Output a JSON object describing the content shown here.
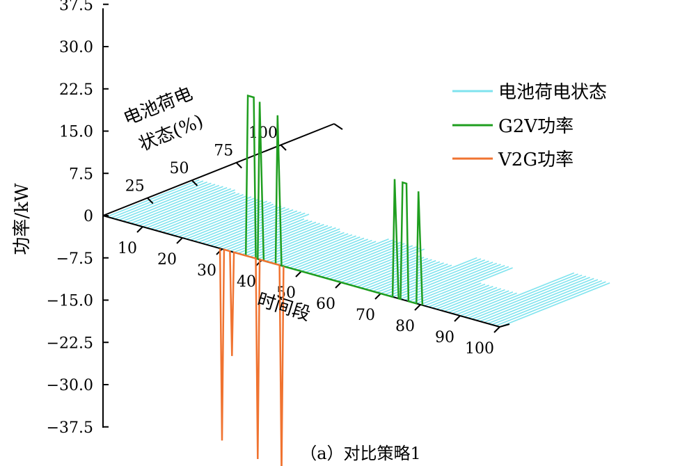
{
  "chart_data": {
    "type": "3d-line",
    "caption": "（a）对比策略1",
    "y_axis": {
      "label": "功率/kW",
      "range": [
        -37.5,
        37.5
      ],
      "ticks": [
        "37.5",
        "30.0",
        "22.5",
        "15.0",
        "7.5",
        "0",
        "−7.5",
        "−15.0",
        "−22.5",
        "−30.0",
        "−37.5"
      ]
    },
    "x_axis": {
      "label": "时间段",
      "range": [
        0,
        100
      ],
      "ticks": [
        "10",
        "20",
        "30",
        "40",
        "50",
        "60",
        "70",
        "80",
        "90",
        "100"
      ]
    },
    "z_axis": {
      "label_line1": "电池荷电",
      "label_line2": "状态(%)",
      "range": [
        0,
        100
      ],
      "ticks": [
        "25",
        "50",
        "75",
        "100"
      ]
    },
    "legend": [
      {
        "name": "电池荷电状态",
        "color": "#7fe3ee"
      },
      {
        "name": "G2V功率",
        "color": "#1f9e1f"
      },
      {
        "name": "V2G功率",
        "color": "#f07330"
      }
    ],
    "soc_series": [
      52,
      52,
      52,
      52,
      52,
      52,
      52,
      52,
      52,
      52,
      50,
      50,
      50,
      50,
      50,
      50,
      50,
      50,
      50,
      50,
      49,
      49,
      49,
      49,
      49,
      49,
      49,
      49,
      49,
      49,
      44,
      44,
      44,
      44,
      44,
      44,
      44,
      44,
      44,
      44,
      42,
      42,
      42,
      42,
      42,
      42,
      42,
      42,
      42,
      42,
      47,
      47,
      47,
      47,
      47,
      47,
      47,
      47,
      47,
      47,
      40,
      40,
      40,
      40,
      40,
      40,
      40,
      40,
      40,
      40,
      52,
      52,
      52,
      52,
      52,
      52,
      52,
      52,
      52,
      52,
      32,
      32,
      32,
      32,
      32,
      32,
      32,
      32,
      32,
      32,
      62,
      62,
      62,
      62,
      62,
      62,
      62,
      62,
      62,
      62
    ],
    "g2v_series": [
      {
        "x": 36.0,
        "y": 0
      },
      {
        "x": 36.5,
        "y": 28.5
      },
      {
        "x": 38.0,
        "y": 28.5
      },
      {
        "x": 38.5,
        "y": 0
      },
      {
        "x": 39.0,
        "y": 0
      },
      {
        "x": 39.5,
        "y": 28.0
      },
      {
        "x": 40.5,
        "y": 0
      },
      {
        "x": 43.5,
        "y": 0
      },
      {
        "x": 44.0,
        "y": 26.5
      },
      {
        "x": 45.0,
        "y": 0
      },
      {
        "x": 73.0,
        "y": 0
      },
      {
        "x": 73.5,
        "y": 21.0
      },
      {
        "x": 74.5,
        "y": 0
      },
      {
        "x": 75.0,
        "y": 0
      },
      {
        "x": 75.5,
        "y": 20.8
      },
      {
        "x": 76.5,
        "y": 20.8
      },
      {
        "x": 77.0,
        "y": 0
      },
      {
        "x": 79.0,
        "y": 0
      },
      {
        "x": 79.5,
        "y": 20.0
      },
      {
        "x": 80.5,
        "y": 0
      }
    ],
    "v2g_series": [
      {
        "x": 29.5,
        "y": 0
      },
      {
        "x": 30.0,
        "y": -34.0
      },
      {
        "x": 30.5,
        "y": 0
      },
      {
        "x": 32.0,
        "y": 0
      },
      {
        "x": 32.5,
        "y": -18.5
      },
      {
        "x": 33.0,
        "y": 0
      },
      {
        "x": 38.5,
        "y": 0
      },
      {
        "x": 39.0,
        "y": -35.5
      },
      {
        "x": 39.5,
        "y": 0
      },
      {
        "x": 44.5,
        "y": 0
      },
      {
        "x": 45.0,
        "y": -36.8
      },
      {
        "x": 45.5,
        "y": 0
      }
    ],
    "grid": false
  }
}
